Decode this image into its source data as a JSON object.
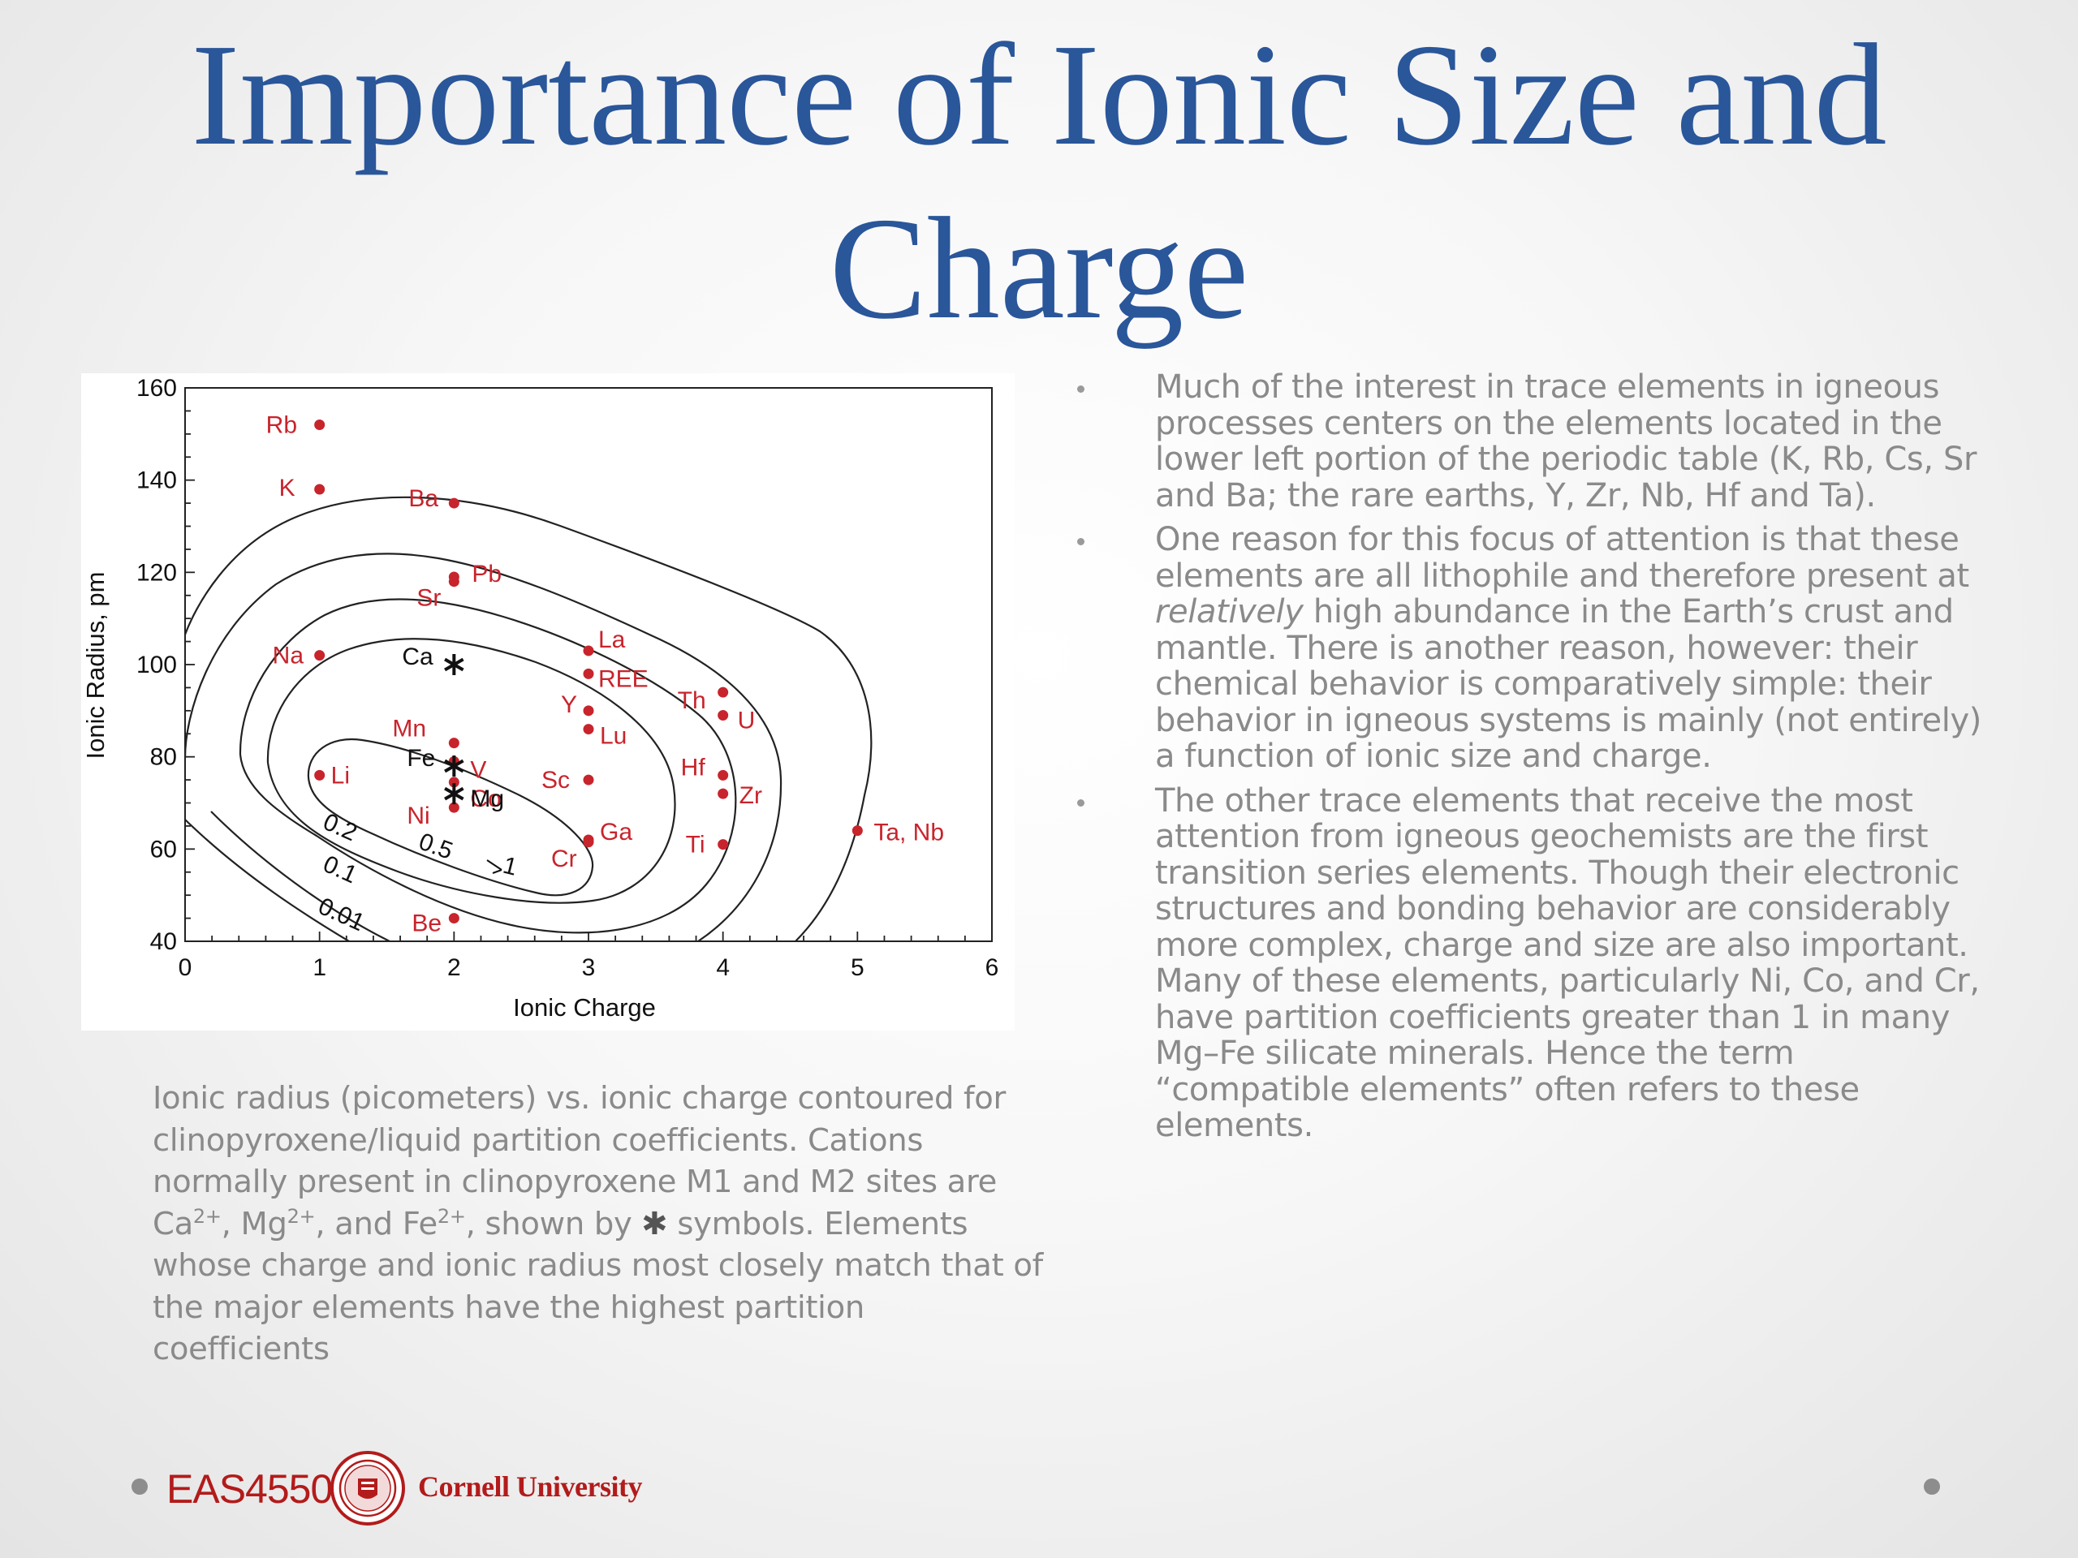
{
  "slide": {
    "title": "Importance of Ionic Size and Charge",
    "caption_parts": [
      "Ionic radius (picometers) vs. ionic charge contoured for clinopyroxene/liquid partition coefficients. Cations normally present in clinopyroxene M1 and M2 sites are Ca",
      "2+",
      ", Mg",
      "2+",
      ", and Fe",
      "2+",
      ", shown by ",
      "✱",
      " symbols. Elements whose charge and ionic radius most closely match that of the major elements have the highest partition coefficients"
    ],
    "bullets": [
      {
        "parts": [
          "Much of the interest in trace elements in igneous processes centers on the elements located in the lower left portion of the periodic table (K, Rb, Cs, Sr and Ba; the rare earths, Y, Zr, Nb, Hf and Ta)."
        ]
      },
      {
        "parts": [
          "One reason for this focus of attention is that these elements are all lithophile and therefore present at ",
          "relatively",
          " high abundance in the Earth’s crust and mantle. There is another reason, however: their chemical behavior is comparatively simple: their behavior in igneous systems is mainly (not entirely) a function of ionic size and charge."
        ]
      },
      {
        "parts": [
          "The other trace elements that receive the most attention from igneous geochemists are the first transition series elements. Though their electronic structures and bonding behavior are considerably more complex, charge and size are also important. Many of these elements, particularly Ni, Co, and Cr, have partition coefficients greater than 1 in many Mg–Fe silicate minerals. Hence the term “compatible elements” often refers to these elements."
        ]
      }
    ],
    "footer": {
      "course_code": "EAS4550",
      "university": "Cornell University",
      "seal_icon": "cornell-seal-icon"
    }
  },
  "colors": {
    "title": "#2a569a",
    "text": "#8a8a8a",
    "points": "#c8242c",
    "major_cations": "#111111",
    "brand": "#b31b1b"
  },
  "chart_data": {
    "type": "scatter",
    "xlabel": "Ionic Charge",
    "ylabel": "Ionic Radius, pm",
    "xlim": [
      0,
      6
    ],
    "ylim": [
      40,
      160
    ],
    "xticks": [
      0,
      1,
      2,
      3,
      4,
      5,
      6
    ],
    "yticks": [
      40,
      60,
      80,
      100,
      120,
      140,
      160
    ],
    "series": [
      {
        "marker": "dot",
        "points": [
          {
            "label": "Rb",
            "x": 1,
            "y": 152
          },
          {
            "label": "K",
            "x": 1,
            "y": 138
          },
          {
            "label": "Na",
            "x": 1,
            "y": 102
          },
          {
            "label": "Li",
            "x": 1,
            "y": 76
          },
          {
            "label": "Ba",
            "x": 2,
            "y": 135
          },
          {
            "label": "Pb",
            "x": 2,
            "y": 119
          },
          {
            "label": "Sr",
            "x": 2,
            "y": 118
          },
          {
            "label": "Mn",
            "x": 2,
            "y": 83
          },
          {
            "label": "V",
            "x": 2,
            "y": 79
          },
          {
            "label": "Co",
            "x": 2,
            "y": 74.5
          },
          {
            "label": "Ni",
            "x": 2,
            "y": 69
          },
          {
            "label": "Be",
            "x": 2,
            "y": 45
          },
          {
            "label": "La",
            "x": 3,
            "y": 103
          },
          {
            "label": "REE",
            "x": 3,
            "y": 98
          },
          {
            "label": "Y",
            "x": 3,
            "y": 90
          },
          {
            "label": "Lu",
            "x": 3,
            "y": 86
          },
          {
            "label": "Sc",
            "x": 3,
            "y": 75
          },
          {
            "label": "Ga",
            "x": 3,
            "y": 62
          },
          {
            "label": "Cr",
            "x": 3,
            "y": 61.5
          },
          {
            "label": "Th",
            "x": 4,
            "y": 94
          },
          {
            "label": "U",
            "x": 4,
            "y": 89
          },
          {
            "label": "Hf",
            "x": 4,
            "y": 76
          },
          {
            "label": "Zr",
            "x": 4,
            "y": 72
          },
          {
            "label": "Ti",
            "x": 4,
            "y": 61
          },
          {
            "label": "Ta, Nb",
            "x": 5,
            "y": 64
          }
        ]
      },
      {
        "marker": "asterisk",
        "points": [
          {
            "label": "Ca",
            "x": 2,
            "y": 100
          },
          {
            "label": "Fe",
            "x": 2,
            "y": 78
          },
          {
            "label": "Mg",
            "x": 2,
            "y": 72
          }
        ]
      }
    ],
    "contours": [
      {
        "label": "0.01"
      },
      {
        "label": "0.1"
      },
      {
        "label": "0.2"
      },
      {
        "label": "0.5"
      },
      {
        "label": "1"
      }
    ]
  }
}
